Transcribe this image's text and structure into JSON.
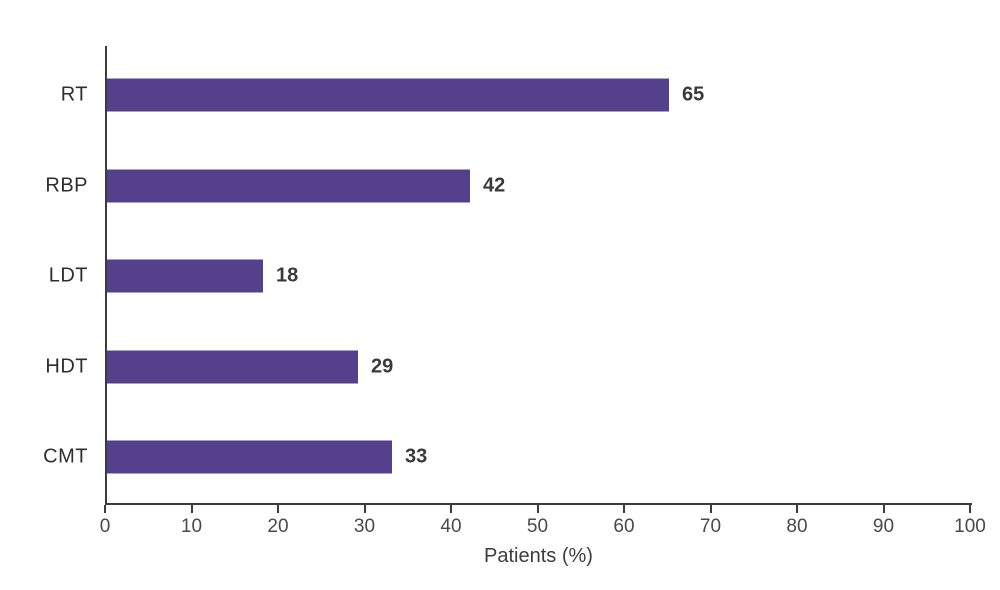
{
  "chart_data": {
    "type": "bar",
    "orientation": "horizontal",
    "categories": [
      "RT",
      "RBP",
      "LDT",
      "HDT",
      "CMT"
    ],
    "values": [
      65,
      42,
      18,
      29,
      33
    ],
    "value_labels": [
      "65",
      "42",
      "18",
      "29",
      "33"
    ],
    "title": "",
    "xlabel": "Patients (%)",
    "ylabel": "",
    "xlim": [
      0,
      100
    ],
    "xticks": [
      0,
      10,
      20,
      30,
      40,
      50,
      60,
      70,
      80,
      90,
      100
    ],
    "grid": false,
    "legend": false,
    "bar_color": "#55408c",
    "axis_color": "#3c3c3c",
    "value_label_color": "#3a3a3a",
    "tick_label_color": "#4a4a4a"
  }
}
